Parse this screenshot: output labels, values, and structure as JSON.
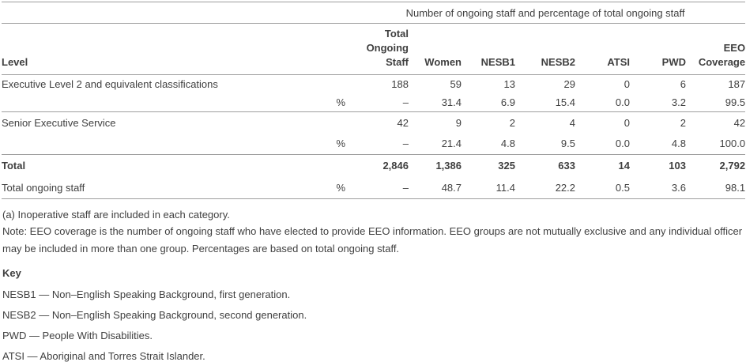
{
  "table": {
    "span_header": "Number of ongoing staff and percentage of total ongoing staff",
    "columns": [
      "Level",
      "Total\nOngoing\nStaff",
      "Women",
      "NESB1",
      "NESB2",
      "ATSI",
      "PWD",
      "EEO\nCoverage"
    ],
    "rows": [
      {
        "level": "Executive Level 2 and equivalent classifications",
        "pct": "",
        "values": [
          "188",
          "59",
          "13",
          "29",
          "0",
          "6",
          "187"
        ]
      },
      {
        "level": "",
        "pct": "%",
        "values": [
          "–",
          "31.4",
          "6.9",
          "15.4",
          "0.0",
          "3.2",
          "99.5"
        ]
      },
      {
        "level": "Senior Executive Service",
        "pct": "",
        "values": [
          "42",
          "9",
          "2",
          "4",
          "0",
          "2",
          "42"
        ]
      },
      {
        "level": "",
        "pct": "%",
        "values": [
          "–",
          "21.4",
          "4.8",
          "9.5",
          "0.0",
          "4.8",
          "100.0"
        ]
      },
      {
        "level": "Total",
        "pct": "",
        "values": [
          "2,846",
          "1,386",
          "325",
          "633",
          "14",
          "103",
          "2,792"
        ]
      },
      {
        "level": "Total ongoing staff",
        "pct": "%",
        "values": [
          "–",
          "48.7",
          "11.4",
          "22.2",
          "0.5",
          "3.6",
          "98.1"
        ]
      }
    ]
  },
  "footnotes": [
    "(a) Inoperative staff are included in each category.",
    "Note: EEO coverage is the number of ongoing staff who have elected to provide EEO information. EEO groups are not mutually exclusive and any individual officer may be included in more than one group. Percentages are based on total ongoing staff."
  ],
  "key": {
    "label": "Key",
    "items": [
      "NESB1 — Non–English Speaking Background, first generation.",
      "NESB2 — Non–English Speaking Background, second generation.",
      "PWD — People With Disabilities.",
      "ATSI — Aboriginal and Torres Strait Islander."
    ]
  },
  "colors": {
    "text": "#3f3f3f",
    "rule": "#9e9e9e",
    "background": "#ffffff"
  }
}
